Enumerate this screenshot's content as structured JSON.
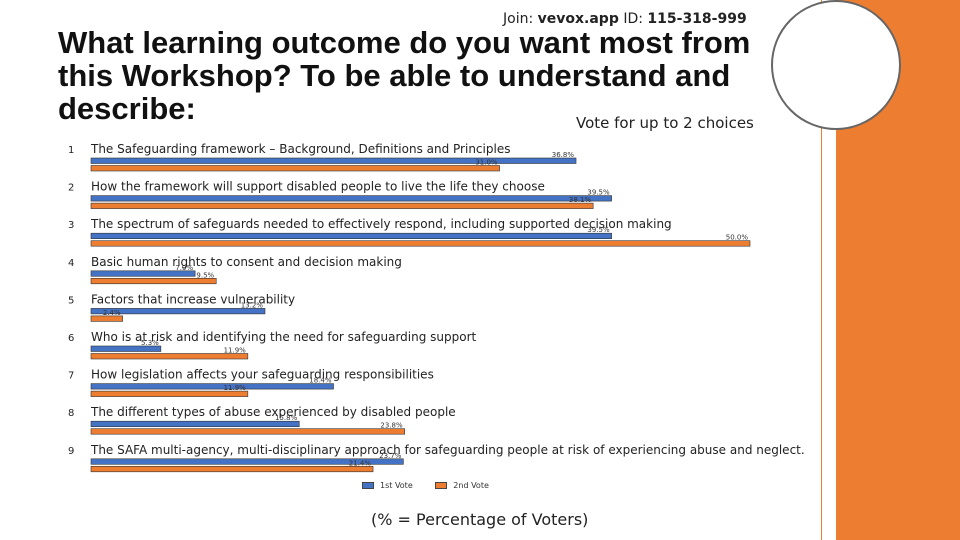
{
  "header": {
    "join_prefix": "Join:",
    "join_site": "vevox.app",
    "join_id_label": "ID:",
    "join_id": "115-318-999",
    "title": "What learning outcome do you want most from this Workshop? To be able to understand and describe:",
    "vote_instruction": "Vote for up to 2 choices"
  },
  "colors": {
    "first_vote": "#4472C4",
    "second_vote": "#ED7D31",
    "side_bar": "#ED7D31"
  },
  "chart_data": {
    "type": "bar",
    "orientation": "horizontal",
    "categories": [
      "The Safeguarding framework – Background, Definitions and Principles",
      "How the framework will support disabled people to live the life they choose",
      "The spectrum of safeguards needed to effectively respond, including supported decision making",
      "Basic human rights to consent and decision making",
      "Factors that increase vulnerability",
      "Who is at risk and identifying the need for safeguarding support",
      "How legislation affects your safeguarding responsibilities",
      "The different types of abuse experienced by disabled people",
      "The SAFA multi-agency, multi-disciplinary approach for safeguarding people at risk of experiencing abuse and neglect."
    ],
    "numbers": [
      "1",
      "2",
      "3",
      "4",
      "5",
      "6",
      "7",
      "8",
      "9"
    ],
    "series": [
      {
        "name": "1st Vote",
        "values": [
          36.8,
          39.5,
          39.5,
          7.9,
          13.2,
          5.3,
          18.4,
          15.8,
          23.7
        ],
        "labels": [
          "36.8%",
          "39.5%",
          "39.5%",
          "7.9%",
          "13.2%",
          "5.3%",
          "18.4%",
          "15.8%",
          "23.7%"
        ]
      },
      {
        "name": "2nd Vote",
        "values": [
          31.0,
          38.1,
          50.0,
          9.5,
          2.4,
          11.9,
          11.9,
          23.8,
          21.4
        ],
        "labels": [
          "31.0%",
          "38.1%",
          "50.0%",
          "9.5%",
          "2.4%",
          "11.9%",
          "11.9%",
          "23.8%",
          "21.4%"
        ]
      }
    ],
    "xlim": [
      0,
      50
    ],
    "legend": "bottom"
  },
  "footer": {
    "note": "(% = Percentage of Voters)"
  }
}
